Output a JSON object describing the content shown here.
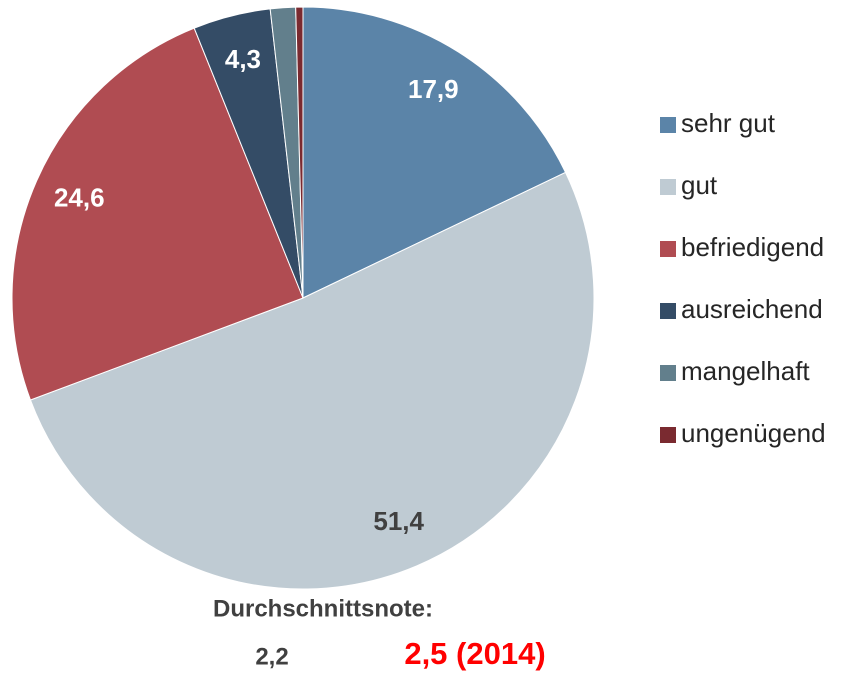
{
  "chart_data": {
    "type": "pie",
    "categories": [
      "sehr gut",
      "gut",
      "befriedigend",
      "ausreichend",
      "mangelhaft",
      "ungenügend"
    ],
    "values": [
      17.9,
      51.4,
      24.6,
      4.3,
      1.4,
      0.4
    ],
    "value_labels": [
      "17,9",
      "51,4",
      "24,6",
      "4,3",
      null,
      null
    ],
    "colors": [
      "#5b84a8",
      "#bfcbd3",
      "#b04c52",
      "#344c66",
      "#627f8c",
      "#7a2a30"
    ],
    "legend": "right",
    "annotations": [
      "Durchschnittsnote:",
      "2,2",
      "2,5 (2014)"
    ]
  }
}
